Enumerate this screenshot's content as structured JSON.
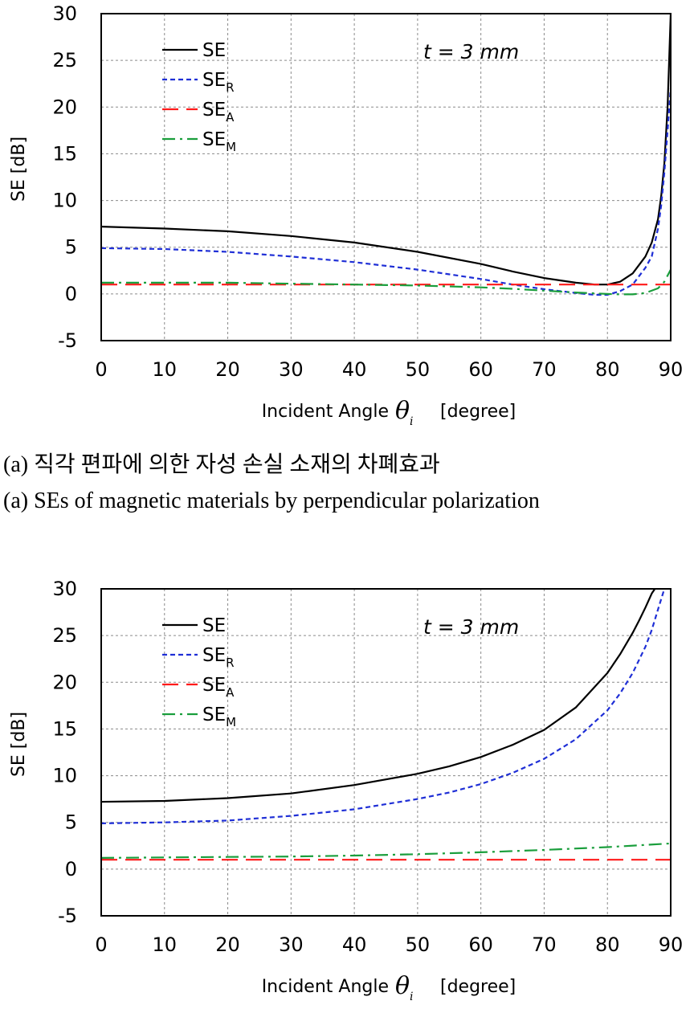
{
  "captions": {
    "korean": "(a) 직각 편파에 의한 자성 손실 소재의 차폐효과",
    "english": "(a) SEs of magnetic materials by perpendicular polarization"
  },
  "chart_data": [
    {
      "type": "line",
      "title": "",
      "xlabel": "Incident Angle",
      "xlabel_symbol": "θ",
      "xlabel_sub": "i",
      "xlabel_unit": "[degree]",
      "ylabel": "SE [dB]",
      "xlim": [
        0,
        90
      ],
      "ylim": [
        -5,
        30
      ],
      "xticks": [
        "0",
        "10",
        "20",
        "30",
        "40",
        "50",
        "60",
        "70",
        "80",
        "90"
      ],
      "yticks": [
        "-5",
        "0",
        "5",
        "10",
        "15",
        "20",
        "25",
        "30"
      ],
      "grid": true,
      "legend_position": "top-left",
      "annotation": "t = 3 mm",
      "series": [
        {
          "name": "SE",
          "sub": "",
          "color": "#000000",
          "dash": "solid",
          "x": [
            0,
            10,
            20,
            30,
            40,
            50,
            60,
            65,
            70,
            75,
            78,
            80,
            82,
            84,
            86,
            87,
            88,
            88.5,
            89,
            89.5,
            90
          ],
          "y": [
            7.2,
            7.0,
            6.7,
            6.2,
            5.5,
            4.5,
            3.2,
            2.4,
            1.7,
            1.2,
            1.0,
            1.0,
            1.3,
            2.2,
            4.0,
            5.5,
            8.0,
            10.5,
            14.0,
            20.0,
            30.0
          ]
        },
        {
          "name": "SE",
          "sub": "R",
          "color": "#1f2fd6",
          "dash": "short",
          "x": [
            0,
            10,
            20,
            30,
            40,
            50,
            60,
            65,
            70,
            75,
            78,
            80,
            82,
            84,
            86,
            87,
            88,
            88.5,
            89,
            89.5,
            90
          ],
          "y": [
            4.9,
            4.8,
            4.5,
            4.0,
            3.4,
            2.6,
            1.6,
            1.0,
            0.5,
            0.1,
            -0.1,
            -0.1,
            0.3,
            1.0,
            2.8,
            4.0,
            7.0,
            9.5,
            13.0,
            17.5,
            22.0
          ]
        },
        {
          "name": "SE",
          "sub": "A",
          "color": "#ff1a1a",
          "dash": "long",
          "x": [
            0,
            90
          ],
          "y": [
            1.0,
            1.0
          ]
        },
        {
          "name": "SE",
          "sub": "M",
          "color": "#1a9e3c",
          "dash": "dashdot",
          "x": [
            0,
            10,
            20,
            30,
            40,
            50,
            60,
            65,
            70,
            75,
            80,
            82,
            84,
            86,
            88,
            89,
            90
          ],
          "y": [
            1.2,
            1.2,
            1.2,
            1.1,
            1.0,
            0.9,
            0.7,
            0.55,
            0.35,
            0.15,
            0.0,
            -0.05,
            -0.05,
            0.1,
            0.6,
            1.3,
            2.6
          ]
        }
      ]
    },
    {
      "type": "line",
      "title": "",
      "xlabel": "Incident Angle",
      "xlabel_symbol": "θ",
      "xlabel_sub": "i",
      "xlabel_unit": "[degree]",
      "ylabel": "SE [dB]",
      "xlim": [
        0,
        90
      ],
      "ylim": [
        -5,
        30
      ],
      "xticks": [
        "0",
        "10",
        "20",
        "30",
        "40",
        "50",
        "60",
        "70",
        "80",
        "90"
      ],
      "yticks": [
        "-5",
        "0",
        "5",
        "10",
        "15",
        "20",
        "25",
        "30"
      ],
      "grid": true,
      "legend_position": "top-left",
      "annotation": "t = 3 mm",
      "series": [
        {
          "name": "SE",
          "sub": "",
          "color": "#000000",
          "dash": "solid",
          "x": [
            0,
            10,
            20,
            30,
            40,
            50,
            55,
            60,
            65,
            70,
            75,
            80,
            82,
            84,
            85,
            86,
            87,
            87.5
          ],
          "y": [
            7.2,
            7.3,
            7.6,
            8.1,
            9.0,
            10.2,
            11.0,
            12.0,
            13.3,
            14.9,
            17.3,
            21.0,
            23.0,
            25.3,
            26.6,
            28.0,
            29.5,
            30.0
          ]
        },
        {
          "name": "SE",
          "sub": "R",
          "color": "#1f2fd6",
          "dash": "short",
          "x": [
            0,
            10,
            20,
            30,
            40,
            50,
            55,
            60,
            65,
            70,
            75,
            80,
            82,
            84,
            86,
            87,
            88,
            89
          ],
          "y": [
            4.9,
            5.0,
            5.2,
            5.7,
            6.4,
            7.5,
            8.2,
            9.1,
            10.3,
            11.8,
            13.9,
            17.0,
            18.8,
            21.0,
            23.8,
            25.6,
            27.8,
            30.0
          ]
        },
        {
          "name": "SE",
          "sub": "A",
          "color": "#ff1a1a",
          "dash": "long",
          "x": [
            0,
            90
          ],
          "y": [
            1.0,
            1.0
          ]
        },
        {
          "name": "SE",
          "sub": "M",
          "color": "#1a9e3c",
          "dash": "dashdot",
          "x": [
            0,
            10,
            20,
            30,
            40,
            50,
            60,
            70,
            80,
            85,
            90
          ],
          "y": [
            1.2,
            1.25,
            1.3,
            1.35,
            1.45,
            1.6,
            1.8,
            2.05,
            2.35,
            2.55,
            2.75
          ]
        }
      ]
    }
  ]
}
